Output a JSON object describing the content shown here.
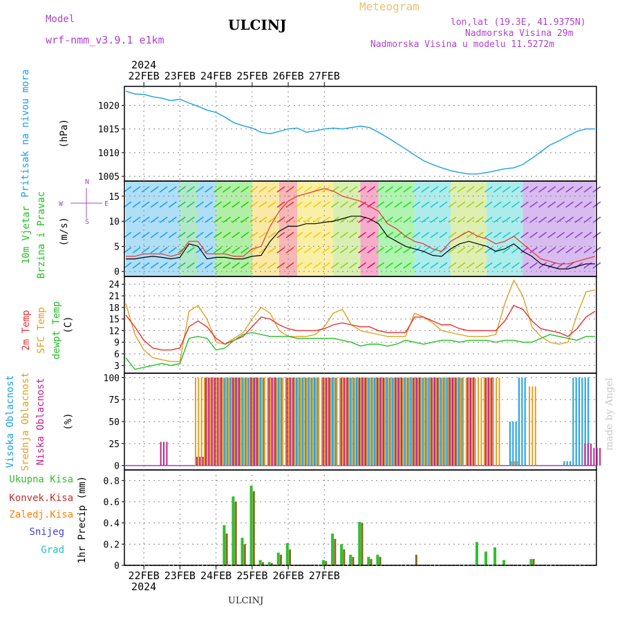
{
  "header": {
    "model_label": "Model",
    "model_name": "wrf-nmm_v3.9.1  e1km",
    "station": "ULCINJ",
    "chart_kind": "Meteogram",
    "coords": "lon,lat (19.3E, 41.9375N)",
    "elevation": "Nadmorska Visina 29m",
    "model_elevation": "Nadmorska Visina u modelu 11.5272m"
  },
  "footer": {
    "station": "ULCINJ",
    "credit": "made by Angel"
  },
  "colors": {
    "pressure": "#1aa0e8",
    "wind_speed": "#000000",
    "wind_gust": "#e83030",
    "t2m": "#e83030",
    "tsfc": "#e0a020",
    "dewpt": "#20c020",
    "cl_high": "#1aa0e8",
    "cl_mid": "#e0a020",
    "cl_low": "#c02090",
    "precip_total": "#30c030",
    "precip_conv": "#c03030",
    "precip_frz": "#ff8000",
    "precip_snow": "#4040e0",
    "precip_grad": "#20c0c0",
    "purple_label": "#b040d0"
  },
  "chart_data": [
    {
      "type": "line",
      "name": "Pritisak na nivou mora",
      "ylabel_main": "Pritisak na nivou mora",
      "ylabel_unit": "(hPa)",
      "ylim": [
        1004,
        1024
      ],
      "yticks": [
        1005,
        1010,
        1015,
        1020
      ],
      "x_start": "21FEB 12h",
      "x_step_hours": 6,
      "x_tick_labels": [
        "22FEB",
        "23FEB",
        "24FEB",
        "25FEB",
        "26FEB",
        "27FEB"
      ],
      "year_label": "2024",
      "grid": true,
      "series": [
        {
          "values": [
            1023,
            1022.4,
            1022.3,
            1021.8,
            1021.5,
            1021.0,
            1021.3,
            1020.5,
            1019.8,
            1019.0,
            1018.5,
            1017.5,
            1016.3,
            1015.7,
            1015.2,
            1014.3,
            1014.0,
            1014.5,
            1015.0,
            1015.2,
            1014.3,
            1014.6,
            1015.0,
            1015.2,
            1015.0,
            1015.3,
            1015.6,
            1015.3,
            1014.3,
            1013.2,
            1012.0,
            1010.8,
            1009.5,
            1008.3,
            1007.5,
            1006.8,
            1006.2,
            1005.8,
            1005.5,
            1005.5,
            1005.8,
            1006.2,
            1006.6,
            1006.8,
            1007.5,
            1008.8,
            1010.2,
            1011.6,
            1012.5,
            1013.5,
            1014.5,
            1015.0,
            1015.0
          ]
        }
      ]
    },
    {
      "type": "line",
      "name": "10m Vjetar",
      "ylabel_main": "10m Vjetar",
      "ylabel_sub": "Brzina i Pravac",
      "ylabel_unit": "(m/s)",
      "compass_n": "N",
      "compass_s": "S",
      "compass_w": "W",
      "compass_e": "E",
      "ylim": [
        -1,
        18
      ],
      "yticks": [
        0,
        5,
        10,
        15
      ],
      "grid": true,
      "series": [
        {
          "name": "speed",
          "values": [
            2.5,
            2.5,
            2.8,
            3.0,
            2.8,
            2.5,
            2.8,
            5.5,
            5.0,
            2.5,
            2.8,
            2.8,
            2.5,
            2.5,
            3.0,
            3.2,
            6.0,
            8.0,
            9.0,
            9.0,
            9.5,
            9.5,
            9.8,
            10.0,
            10.5,
            11.0,
            11.0,
            10.5,
            9.5,
            7.0,
            6.0,
            5.0,
            4.5,
            4.0,
            3.2,
            3.0,
            4.5,
            5.5,
            6.0,
            5.5,
            5.0,
            4.0,
            4.5,
            5.5,
            4.0,
            3.0,
            1.5,
            1.0,
            0.5,
            0.5,
            1.0,
            1.5,
            1.5
          ]
        },
        {
          "name": "gust",
          "values": [
            3.0,
            3.0,
            3.5,
            3.5,
            3.5,
            3.0,
            3.5,
            6.0,
            6.0,
            3.5,
            3.5,
            3.5,
            3.0,
            3.0,
            4.5,
            5.0,
            9.0,
            12.0,
            14.0,
            15.0,
            15.5,
            16.0,
            16.5,
            16.0,
            15.0,
            14.5,
            14.0,
            13.0,
            12.0,
            9.5,
            8.5,
            7.0,
            6.0,
            5.5,
            4.5,
            4.0,
            6.0,
            7.0,
            8.0,
            7.0,
            6.5,
            5.5,
            6.0,
            7.0,
            5.5,
            4.0,
            2.5,
            2.0,
            1.5,
            1.5,
            2.0,
            2.5,
            3.0
          ]
        }
      ]
    },
    {
      "type": "line",
      "name": "Temperature",
      "ylabel_t2m": "2m Temp",
      "ylabel_tsfc": "SFC Temp",
      "ylabel_dewpt": "dewpt Temp",
      "ylabel_unit": "(C)",
      "ylim": [
        1,
        26
      ],
      "yticks": [
        3,
        6,
        9,
        12,
        15,
        18,
        21,
        24
      ],
      "grid": true,
      "series": [
        {
          "name": "2m",
          "values": [
            16.0,
            13.0,
            9.5,
            7.5,
            7.0,
            7.0,
            7.5,
            13.0,
            14.5,
            13.0,
            10.0,
            8.5,
            9.5,
            10.5,
            13.0,
            15.5,
            15.0,
            13.5,
            12.5,
            12.0,
            12.0,
            12.0,
            12.5,
            13.5,
            14.0,
            13.5,
            13.0,
            13.0,
            12.0,
            11.5,
            11.5,
            11.5,
            15.5,
            15.5,
            14.5,
            13.5,
            13.5,
            12.5,
            12.0,
            12.0,
            12.0,
            12.0,
            14.5,
            18.5,
            17.5,
            14.5,
            12.5,
            12.0,
            11.5,
            10.5,
            12.5,
            15.5,
            17.0
          ]
        },
        {
          "name": "SFC",
          "values": [
            19.0,
            11.0,
            7.0,
            5.0,
            4.5,
            4.0,
            4.0,
            17.0,
            18.5,
            15.0,
            9.0,
            8.5,
            10.0,
            11.5,
            15.0,
            18.0,
            16.5,
            12.0,
            10.5,
            10.5,
            10.5,
            11.0,
            13.0,
            16.5,
            17.5,
            13.5,
            12.0,
            11.5,
            11.0,
            10.5,
            10.5,
            10.5,
            16.5,
            15.5,
            14.0,
            12.0,
            11.5,
            11.0,
            10.5,
            10.5,
            10.5,
            11.0,
            19.0,
            25.0,
            21.0,
            13.0,
            10.5,
            9.0,
            8.5,
            9.0,
            16.0,
            22.0,
            22.5
          ]
        },
        {
          "name": "dewpt",
          "values": [
            5.0,
            2.0,
            2.5,
            3.0,
            3.5,
            3.0,
            3.5,
            10.0,
            10.5,
            10.0,
            7.0,
            7.5,
            9.5,
            11.0,
            11.5,
            11.0,
            10.5,
            10.5,
            10.5,
            10.0,
            10.0,
            10.0,
            10.0,
            10.0,
            9.5,
            9.0,
            8.0,
            8.5,
            8.5,
            8.0,
            8.5,
            9.5,
            9.0,
            8.5,
            9.0,
            9.5,
            9.5,
            9.0,
            9.5,
            9.5,
            9.5,
            9.0,
            9.5,
            9.5,
            9.0,
            9.0,
            10.0,
            11.0,
            10.5,
            10.0,
            9.5,
            10.5,
            10.5
          ]
        }
      ]
    },
    {
      "type": "bar",
      "name": "Oblacnost",
      "ylabel_high": "Visoka Oblacnost",
      "ylabel_mid": "Srednja Oblacnost",
      "ylabel_low": "Niska Oblacnost",
      "ylabel_unit": "(%)",
      "ylim": [
        -5,
        105
      ],
      "yticks": [
        0,
        25,
        50,
        75,
        100
      ],
      "grid": true,
      "series": [
        {
          "name": "high",
          "values": [
            0,
            0,
            0,
            0,
            0,
            0,
            0,
            0,
            0,
            0,
            0,
            100,
            100,
            100,
            100,
            100,
            0,
            100,
            0,
            100,
            100,
            100,
            0,
            100,
            0,
            100,
            100,
            100,
            100,
            100,
            100,
            100,
            100,
            100,
            100,
            100,
            100,
            100,
            0,
            0,
            0,
            0,
            0,
            50,
            100,
            0,
            0,
            0,
            0,
            5,
            100,
            100,
            0
          ]
        },
        {
          "name": "mid",
          "values": [
            0,
            0,
            0,
            0,
            0,
            0,
            0,
            0,
            100,
            100,
            100,
            100,
            100,
            100,
            100,
            100,
            100,
            100,
            100,
            100,
            100,
            100,
            100,
            100,
            100,
            100,
            100,
            100,
            100,
            100,
            100,
            100,
            100,
            100,
            100,
            100,
            100,
            100,
            100,
            100,
            100,
            100,
            0,
            5,
            0,
            90,
            0,
            0,
            0,
            0,
            0,
            0,
            0
          ]
        },
        {
          "name": "low",
          "values": [
            0,
            0,
            0,
            0,
            27,
            0,
            0,
            0,
            10,
            100,
            100,
            0,
            100,
            0,
            100,
            0,
            100,
            0,
            100,
            0,
            0,
            0,
            100,
            0,
            100,
            0,
            100,
            0,
            100,
            0,
            100,
            0,
            100,
            0,
            100,
            0,
            100,
            0,
            100,
            0,
            100,
            0,
            0,
            0,
            0,
            0,
            0,
            0,
            0,
            0,
            0,
            25,
            20
          ]
        }
      ]
    },
    {
      "type": "bar",
      "name": "1hr Precip",
      "legend": [
        "Ukupna Kisa",
        "Konvek.Kisa",
        "Zaledj.Kisa",
        "Snijeg",
        "Grad"
      ],
      "ylabel_unit": "1hr Precip (mm)",
      "ylim": [
        0,
        0.9
      ],
      "yticks": [
        0,
        0.2,
        0.4,
        0.6,
        0.8
      ],
      "grid": true,
      "series": [
        {
          "name": "total",
          "values": [
            0,
            0,
            0,
            0,
            0,
            0,
            0,
            0,
            0,
            0,
            0,
            0.38,
            0.65,
            0.26,
            0.75,
            0.05,
            0.03,
            0.12,
            0.21,
            0,
            0,
            0,
            0.05,
            0.3,
            0.2,
            0.1,
            0.41,
            0.08,
            0.1,
            0,
            0,
            0,
            0,
            0,
            0,
            0,
            0,
            0,
            0,
            0.22,
            0.13,
            0.17,
            0.05,
            0,
            0,
            0.06,
            0,
            0,
            0,
            0,
            0,
            0,
            0
          ]
        },
        {
          "name": "conv",
          "values": [
            0,
            0,
            0,
            0,
            0,
            0,
            0,
            0,
            0,
            0,
            0,
            0.3,
            0.6,
            0.2,
            0.7,
            0.03,
            0.02,
            0.1,
            0.15,
            0,
            0,
            0,
            0.04,
            0.25,
            0.15,
            0.08,
            0.4,
            0.06,
            0.08,
            0,
            0,
            0,
            0.1,
            0,
            0,
            0,
            0,
            0,
            0,
            0,
            0,
            0,
            0,
            0,
            0,
            0.06,
            0,
            0,
            0,
            0,
            0,
            0,
            0
          ]
        }
      ]
    }
  ]
}
